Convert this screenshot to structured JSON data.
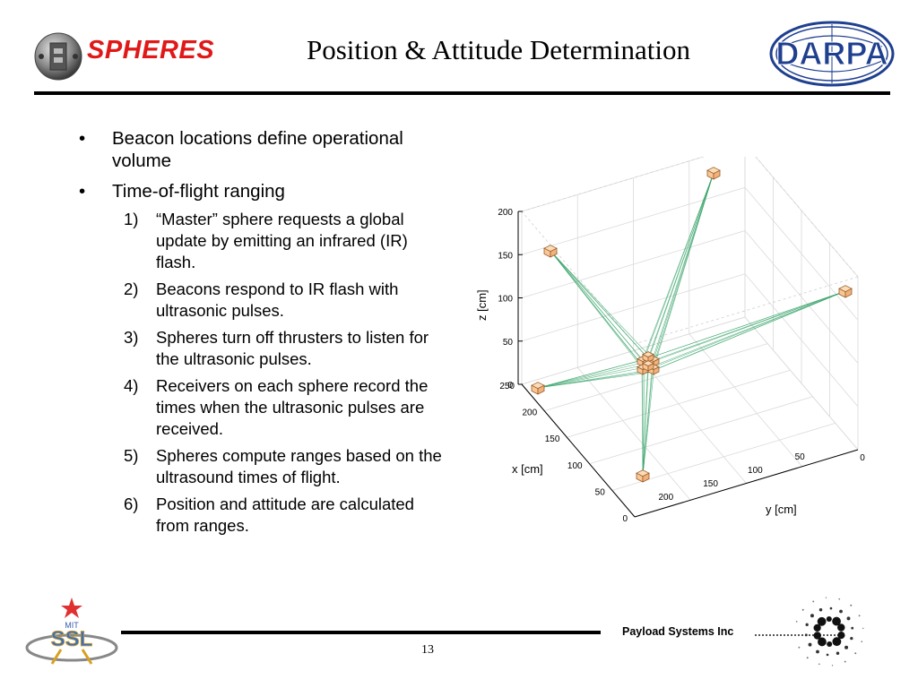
{
  "header": {
    "brand": "SPHERES",
    "title": "Position & Attitude Determination",
    "partner_logo_text": "DARPA"
  },
  "bullets": [
    {
      "marker": "•",
      "text": "Beacon locations define operational volume"
    },
    {
      "marker": "•",
      "text": "Time-of-flight ranging"
    }
  ],
  "steps": [
    {
      "num": "1)",
      "text": "“Master” sphere requests a global update by emitting an infrared (IR) flash."
    },
    {
      "num": "2)",
      "text": "Beacons respond to IR flash with ultrasonic pulses."
    },
    {
      "num": "3)",
      "text": "Spheres turn off thrusters to listen for the ultrasonic pulses."
    },
    {
      "num": "4)",
      "text": "Receivers on each sphere record the times when the ultrasonic pulses are received."
    },
    {
      "num": "5)",
      "text": "Spheres compute ranges based on the ultrasound times of flight."
    },
    {
      "num": "6)",
      "text": "Position and attitude are calculated from ranges."
    }
  ],
  "plot": {
    "type": "3d-scatter",
    "zlabel": "z [cm]",
    "xlabel": "x [cm]",
    "ylabel": "y [cm]",
    "z_ticks": [
      "200",
      "150",
      "100",
      "50",
      "0"
    ],
    "x_ticks": [
      "250",
      "200",
      "150",
      "100",
      "50",
      "0"
    ],
    "y_ticks": [
      "200",
      "150",
      "100",
      "50",
      "0"
    ]
  },
  "footer": {
    "company": "Payload Systems Inc",
    "page_number": "13",
    "lab_logo_text": "SSL",
    "lab_logo_small": "MIT"
  },
  "colors": {
    "brand": "#e01818",
    "darpa_blue": "#1f3f8f",
    "ray": "#3aa46a",
    "cube_fill": "#f7c896",
    "cube_stroke": "#9a5a2a"
  }
}
